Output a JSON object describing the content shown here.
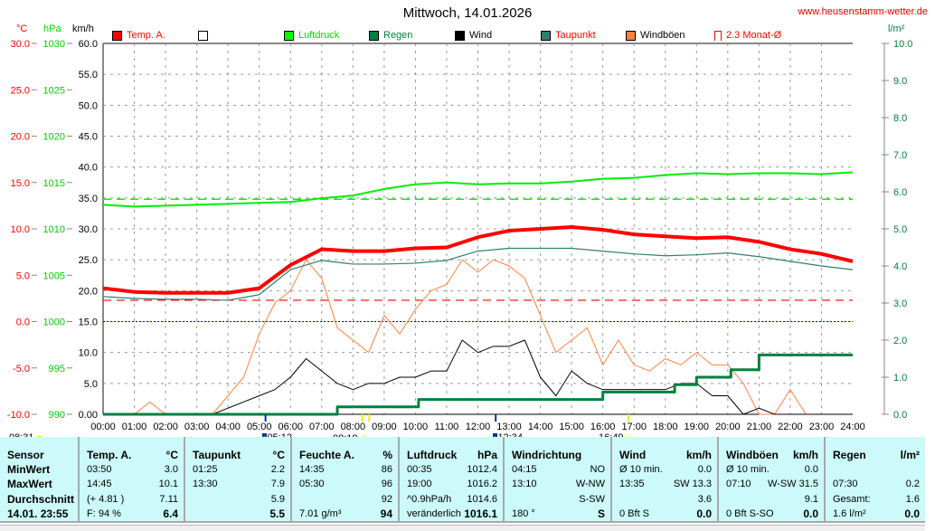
{
  "header": {
    "title": "Mittwoch, 14.01.2026",
    "site": "www.heusenstamm-wetter.de"
  },
  "axes": {
    "temp_unit": "°C",
    "press_unit": "hPa",
    "wind_unit": "km/h",
    "rain_unit": "l/m²"
  },
  "legend": [
    {
      "label": "Temp. A.",
      "color": "#ff0000",
      "text_color": "#ff0000"
    },
    {
      "label": "",
      "color": "#ffffff",
      "text_color": "#000000"
    },
    {
      "label": "Luftdruck",
      "color": "#00ff00",
      "text_color": "#00dd00"
    },
    {
      "label": "Regen",
      "color": "#008040",
      "text_color": "#008040"
    },
    {
      "label": "Wind",
      "color": "#000000",
      "text_color": "#000000"
    },
    {
      "label": "Taupunkt",
      "color": "#2f7f70",
      "text_color": "#ff0000"
    },
    {
      "label": "Windböen",
      "color": "#ff8040",
      "text_color": "#000000"
    },
    {
      "label": "2.3 Monat-Ø",
      "color": "#ffffff",
      "text_color": "#ff0000"
    }
  ],
  "astro": {
    "sunrise": "08:31",
    "moonrise": "05:12",
    "moonset": "08:18",
    "moon_other": "12:34",
    "sunset": "16:49"
  },
  "chart_data": {
    "type": "line",
    "title": "Mittwoch, 14.01.2026",
    "x_ticks": [
      "00:00",
      "01:00",
      "02:00",
      "03:00",
      "04:00",
      "05:00",
      "06:00",
      "07:00",
      "08:00",
      "09:00",
      "10:00",
      "11:00",
      "12:00",
      "13:00",
      "14:00",
      "15:00",
      "16:00",
      "17:00",
      "18:00",
      "19:00",
      "20:00",
      "21:00",
      "22:00",
      "23:00",
      "24:00"
    ],
    "xlim": [
      0,
      24
    ],
    "temp_axis": {
      "range": [
        -10,
        30
      ],
      "ticks": [
        "30.0",
        "25.0",
        "20.0",
        "15.0",
        "10.0",
        "5.0",
        "0.0",
        "-5.0",
        "-10.0"
      ]
    },
    "press_axis": {
      "range": [
        990,
        1030
      ],
      "ticks": [
        "1030",
        "1025",
        "1020",
        "1015",
        "1010",
        "1005",
        "1000",
        "995",
        "990"
      ]
    },
    "wind_axis": {
      "range": [
        0,
        60
      ],
      "ticks": [
        "60.0",
        "55.0",
        "50.0",
        "45.0",
        "40.0",
        "35.0",
        "30.0",
        "25.0",
        "20.0",
        "15.0",
        "10.0",
        "5.0",
        "0.00"
      ]
    },
    "rain_axis": {
      "range": [
        0,
        10
      ],
      "ticks": [
        "10.0",
        "9.0",
        "8.0",
        "7.0",
        "6.0",
        "5.0",
        "4.0",
        "3.0",
        "2.0",
        "1.0",
        "0.0"
      ]
    },
    "reference_lines": {
      "pressure_mean": 1013.2,
      "temp_month_mean": 2.3,
      "freezing": 0
    },
    "series": [
      {
        "name": "Temp. A.",
        "unit": "°C",
        "step_h": 1,
        "values": [
          3.6,
          3.2,
          3.1,
          3.1,
          3.1,
          3.6,
          6.1,
          7.8,
          7.6,
          7.6,
          7.9,
          8.0,
          9.1,
          9.8,
          10.0,
          10.2,
          9.9,
          9.4,
          9.2,
          9.0,
          9.1,
          8.6,
          7.8,
          7.3,
          6.5
        ]
      },
      {
        "name": "Taupunkt",
        "unit": "°C",
        "step_h": 1,
        "values": [
          2.7,
          2.5,
          2.4,
          2.4,
          2.3,
          2.9,
          5.6,
          6.6,
          6.2,
          6.2,
          6.3,
          6.6,
          7.6,
          7.9,
          7.9,
          7.9,
          7.6,
          7.3,
          7.1,
          7.2,
          7.4,
          7.0,
          6.5,
          6.0,
          5.6
        ]
      },
      {
        "name": "Luftdruck",
        "unit": "hPa",
        "step_h": 1,
        "values": [
          1012.6,
          1012.4,
          1012.5,
          1012.6,
          1012.7,
          1012.8,
          1012.9,
          1013.3,
          1013.6,
          1014.3,
          1014.8,
          1015.0,
          1014.8,
          1014.9,
          1014.9,
          1015.1,
          1015.4,
          1015.5,
          1015.8,
          1016.0,
          1015.9,
          1016.0,
          1016.0,
          1015.9,
          1016.1
        ]
      },
      {
        "name": "Wind",
        "unit": "km/h",
        "step_h": 0.5,
        "values": [
          0,
          0,
          0,
          0,
          0,
          0,
          0,
          0,
          1,
          2,
          3,
          4,
          6,
          9,
          7,
          5,
          4,
          5,
          5,
          6,
          6,
          7,
          7,
          12,
          10,
          11,
          11,
          12,
          6,
          3,
          7,
          5,
          4,
          4,
          4,
          4,
          4,
          5,
          5,
          3,
          3,
          0,
          1,
          0,
          0,
          0,
          0,
          0,
          0
        ]
      },
      {
        "name": "Windböen",
        "unit": "km/h",
        "step_h": 0.5,
        "values": [
          0,
          0,
          0,
          2,
          0,
          0,
          0,
          0,
          3,
          6,
          13,
          18,
          20,
          25,
          22,
          14,
          12,
          10,
          16,
          13,
          17,
          20,
          21,
          25,
          23,
          25,
          24,
          22,
          16,
          10,
          12,
          14,
          8,
          12,
          8,
          7,
          9,
          8,
          10,
          8,
          8,
          5,
          0,
          0,
          4,
          0,
          0,
          0,
          0
        ]
      },
      {
        "name": "Regen",
        "unit": "l/m²",
        "points": [
          [
            0,
            0
          ],
          [
            7.5,
            0
          ],
          [
            7.5,
            0.2
          ],
          [
            10.1,
            0.2
          ],
          [
            10.1,
            0.4
          ],
          [
            16,
            0.4
          ],
          [
            16,
            0.6
          ],
          [
            18.3,
            0.6
          ],
          [
            18.3,
            0.8
          ],
          [
            19,
            0.8
          ],
          [
            19,
            1.0
          ],
          [
            20.1,
            1.0
          ],
          [
            20.1,
            1.2
          ],
          [
            21,
            1.2
          ],
          [
            21,
            1.6
          ],
          [
            24,
            1.6
          ]
        ]
      }
    ]
  },
  "table": [
    {
      "head": [
        "Sensor",
        ""
      ],
      "rows": [
        [
          "MinWert",
          ""
        ],
        [
          "MaxWert",
          ""
        ],
        [
          "Durchschnitt",
          ""
        ],
        [
          "14.01. 23:55",
          ""
        ]
      ],
      "boldleft": true
    },
    {
      "head": [
        "Temp. A.",
        "°C"
      ],
      "rows": [
        [
          "03:50",
          "3.0"
        ],
        [
          "14:45",
          "10.1"
        ],
        [
          "(+ 4.81 )",
          "7.11"
        ],
        [
          "F: 94 %",
          "6.4"
        ]
      ]
    },
    {
      "head": [
        "Taupunkt",
        "°C"
      ],
      "rows": [
        [
          "01:25",
          "2.2"
        ],
        [
          "13:30",
          "7.9"
        ],
        [
          "",
          "5.9"
        ],
        [
          "",
          "5.5"
        ]
      ]
    },
    {
      "head": [
        "Feuchte A.",
        "%"
      ],
      "rows": [
        [
          "14:35",
          "86"
        ],
        [
          "05:30",
          "96"
        ],
        [
          "",
          "92"
        ],
        [
          "7.01 g/m³",
          "94"
        ]
      ]
    },
    {
      "head": [
        "Luftdruck",
        "hPa"
      ],
      "rows": [
        [
          "00:35",
          "1012.4"
        ],
        [
          "19:00",
          "1016.2"
        ],
        [
          "^0.9hPa/h",
          "1014.6"
        ],
        [
          "veränderlich",
          "1016.1"
        ]
      ]
    },
    {
      "head": [
        "Windrichtung",
        ""
      ],
      "rows": [
        [
          "04:15",
          "NO"
        ],
        [
          "13:10",
          "W-NW"
        ],
        [
          "",
          "S-SW"
        ],
        [
          "180 °",
          "S"
        ]
      ]
    },
    {
      "head": [
        "Wind",
        "km/h"
      ],
      "rows": [
        [
          "Ø 10 min.",
          "0.0"
        ],
        [
          "13:35",
          "SW 13.3"
        ],
        [
          "",
          "3.6"
        ],
        [
          "0 Bft S",
          "0.0"
        ]
      ]
    },
    {
      "head": [
        "Windböen",
        "km/h"
      ],
      "rows": [
        [
          "Ø 10 min.",
          "0.0"
        ],
        [
          "07:10",
          "W-SW 31.5"
        ],
        [
          "",
          "9.1"
        ],
        [
          "0 Bft S-SO",
          "0.0"
        ]
      ]
    },
    {
      "head": [
        "Regen",
        "l/m²"
      ],
      "rows": [
        [
          "",
          ""
        ],
        [
          "07:30",
          "0.2"
        ],
        [
          "Gesamt:",
          "1.6"
        ],
        [
          "1.6 l/m²",
          "0.0"
        ]
      ]
    }
  ]
}
